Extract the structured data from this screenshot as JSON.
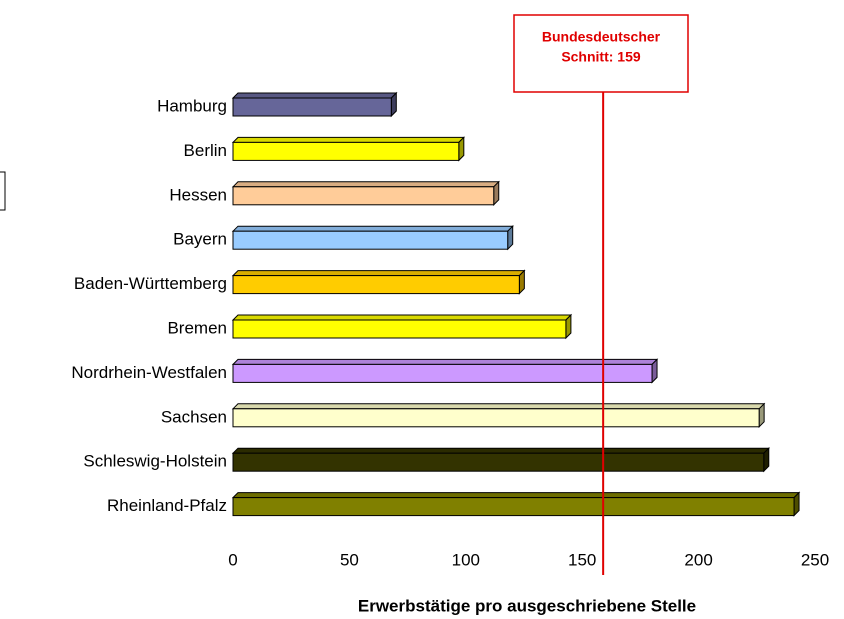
{
  "chart_data": {
    "type": "bar",
    "orientation": "horizontal",
    "x_label": "Erwerbstätige pro ausgeschriebene Stelle",
    "categories": [
      "Hamburg",
      "Berlin",
      "Hessen",
      "Bayern",
      "Baden-Württemberg",
      "Bremen",
      "Nordrhein-Westfalen",
      "Sachsen",
      "Schleswig-Holstein",
      "Rheinland-Pfalz"
    ],
    "values": [
      68,
      97,
      112,
      118,
      123,
      143,
      180,
      226,
      228,
      241
    ],
    "colors": [
      "#666699",
      "#ffff00",
      "#ffcc99",
      "#99ccff",
      "#ffcc00",
      "#ffff00",
      "#cc99ff",
      "#ffffcc",
      "#333300",
      "#808000"
    ],
    "xlim": [
      0,
      250
    ],
    "xticks": [
      0,
      50,
      100,
      150,
      200,
      250
    ],
    "annotation": {
      "lines": [
        "Bundesdeutscher",
        "Schnitt: 159"
      ],
      "value": 159,
      "color": "#e00000"
    }
  }
}
